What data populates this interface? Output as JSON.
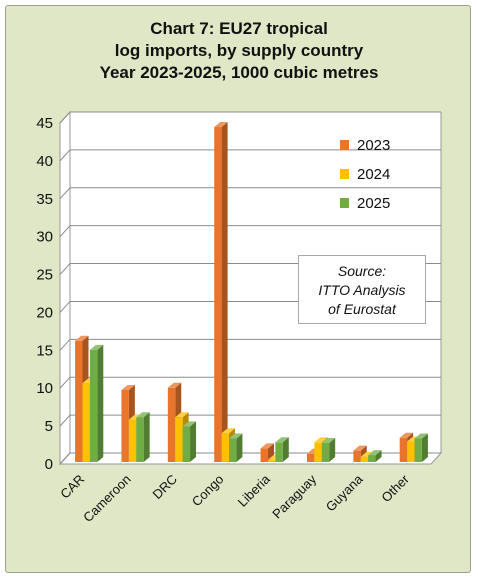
{
  "title_lines": [
    "Chart 7: EU27 tropical",
    "log imports, by supply country",
    "Year 2023-2025, 1000 cubic metres"
  ],
  "source_lines": [
    "Source:",
    "ITTO  Analysis",
    "of Eurostat"
  ],
  "colors": {
    "background": "#dfe7c6",
    "plot": "#ffffff",
    "grid": "#8c8c8c"
  },
  "chart_data": {
    "type": "bar",
    "title": "Chart 7: EU27 tropical log imports, by supply country Year 2023-2025, 1000 cubic metres",
    "xlabel": "",
    "ylabel": "",
    "ylim": [
      0,
      45
    ],
    "yticks": [
      0,
      5,
      10,
      15,
      20,
      25,
      30,
      35,
      40,
      45
    ],
    "grid": true,
    "legend": "upper-right",
    "three_d": true,
    "categories": [
      "CAR",
      "Cameroon",
      "DRC",
      "Congo",
      "Liberia",
      "Paraguay",
      "Guyana",
      "Other"
    ],
    "series": [
      {
        "name": "2023",
        "color": "#e8752b",
        "values": [
          16.0,
          9.5,
          9.8,
          44.2,
          1.8,
          1.1,
          1.5,
          3.2
        ]
      },
      {
        "name": "2024",
        "color": "#ffc000",
        "values": [
          10.4,
          5.6,
          5.9,
          3.8,
          0.3,
          2.6,
          0.7,
          2.7
        ]
      },
      {
        "name": "2025",
        "color": "#70ad47",
        "values": [
          14.8,
          5.9,
          4.7,
          3.1,
          2.6,
          2.5,
          0.9,
          3.1
        ]
      }
    ]
  }
}
